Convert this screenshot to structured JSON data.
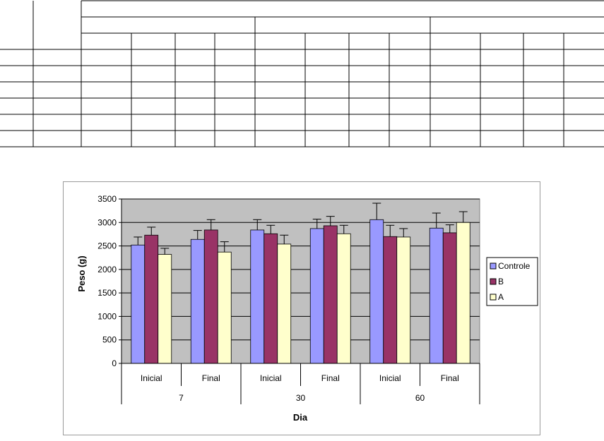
{
  "table": {
    "rows": 7,
    "columns": 14
  },
  "chart_data": {
    "type": "bar",
    "ylabel": "Peso (g)",
    "xlabel": "Dia",
    "ylim": [
      0,
      3500
    ],
    "ytick_step": 500,
    "grid": true,
    "legend_position": "right",
    "groups": [
      {
        "label": "7",
        "categories": [
          "Inicial",
          "Final"
        ]
      },
      {
        "label": "30",
        "categories": [
          "Inicial",
          "Final"
        ]
      },
      {
        "label": "60",
        "categories": [
          "Inicial",
          "Final"
        ]
      }
    ],
    "series": [
      {
        "name": "Controle",
        "color": "#9999ff",
        "values": [
          2520,
          2640,
          2840,
          2870,
          3060,
          2880
        ],
        "errors": [
          170,
          190,
          220,
          200,
          350,
          320
        ]
      },
      {
        "name": "B",
        "color": "#993366",
        "values": [
          2730,
          2840,
          2760,
          2930,
          2700,
          2780
        ],
        "errors": [
          170,
          220,
          180,
          200,
          240,
          170
        ]
      },
      {
        "name": "A",
        "color": "#ffffcc",
        "values": [
          2320,
          2370,
          2540,
          2760,
          2690,
          3000
        ],
        "errors": [
          130,
          220,
          190,
          180,
          180,
          230
        ]
      }
    ],
    "plot_area_color": "#c0c0c0"
  }
}
